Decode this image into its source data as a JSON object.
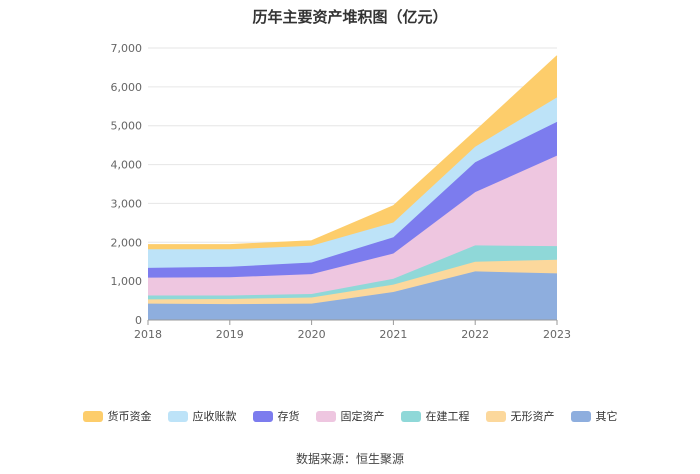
{
  "page_title": "历年主要资产堆积图（亿元）",
  "source_text": "数据来源：恒生聚源",
  "chart_data": {
    "type": "area",
    "stacked": true,
    "title": "历年主要资产堆积图（亿元）",
    "xlabel": "",
    "ylabel": "",
    "ylim": [
      0,
      7000
    ],
    "yticks": [
      0,
      1000,
      2000,
      3000,
      4000,
      5000,
      6000,
      7000
    ],
    "ytick_labels": [
      "0",
      "1,000",
      "2,000",
      "3,000",
      "4,000",
      "5,000",
      "6,000",
      "7,000"
    ],
    "x": [
      "2018",
      "2019",
      "2020",
      "2021",
      "2022",
      "2023"
    ],
    "grid": true,
    "legend_position": "bottom",
    "series": [
      {
        "name": "其它",
        "color": "#8eaede",
        "values": [
          420,
          410,
          420,
          720,
          1250,
          1200
        ]
      },
      {
        "name": "无形资产",
        "color": "#fcd89c",
        "values": [
          110,
          130,
          160,
          190,
          250,
          350
        ]
      },
      {
        "name": "在建工程",
        "color": "#8fd8d8",
        "values": [
          100,
          90,
          90,
          150,
          420,
          350
        ]
      },
      {
        "name": "固定资产",
        "color": "#eec6e0",
        "values": [
          460,
          470,
          510,
          650,
          1370,
          2330
        ]
      },
      {
        "name": "存货",
        "color": "#7c7cee",
        "values": [
          250,
          270,
          300,
          420,
          770,
          870
        ]
      },
      {
        "name": "应收账款",
        "color": "#bde3f8",
        "values": [
          480,
          450,
          430,
          380,
          400,
          630
        ]
      },
      {
        "name": "货币资金",
        "color": "#fdcd6b",
        "values": [
          120,
          120,
          130,
          430,
          400,
          1070
        ]
      }
    ],
    "legend_order": [
      "货币资金",
      "应收账款",
      "存货",
      "固定资产",
      "在建工程",
      "无形资产",
      "其它"
    ]
  }
}
